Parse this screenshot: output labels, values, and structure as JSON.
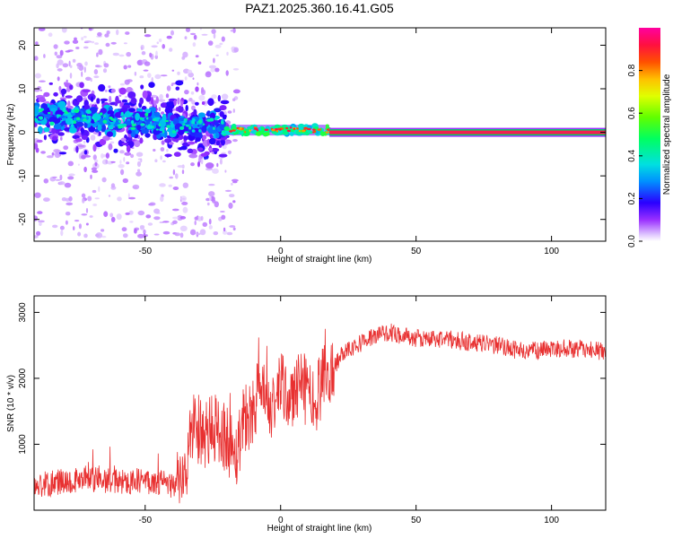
{
  "title": "PAZ1.2025.360.16.41.G05",
  "colors": {
    "snr_line": "#e83030",
    "track_core": "#f02050",
    "track_edge": "#00d060"
  },
  "chart_data": [
    {
      "type": "heatmap",
      "title": "PAZ1.2025.360.16.41.G05",
      "xlabel": "Height of straight line (km)",
      "ylabel": "Frequency (Hz)",
      "xlim": [
        -91,
        120
      ],
      "ylim": [
        -25,
        24
      ],
      "xticks": [
        -50,
        0,
        50,
        100
      ],
      "xtick_labels": [
        "-50",
        "0",
        "50",
        "100"
      ],
      "yticks": [
        20,
        10,
        0,
        -10,
        -20
      ],
      "ytick_labels": [
        "20",
        "10",
        "0",
        "-10",
        "-20"
      ],
      "description_points": {
        "noisy_region_x": [
          -91,
          -20
        ],
        "noisy_center_freq_start": 4,
        "noisy_center_freq_end": 1,
        "transition_region_x": [
          -20,
          18
        ],
        "transition_center_freq": 0.5,
        "clean_tone_region_x": [
          18,
          120
        ],
        "clean_tone_freq": 0
      },
      "colorbar": {
        "label": "Normalized spectral amplitude",
        "range": [
          0,
          1
        ],
        "ticks": [
          0.0,
          0.2,
          0.4,
          0.6,
          0.8
        ],
        "tick_labels": [
          "0.0",
          "0.2",
          "0.4",
          "0.6",
          "0.8"
        ]
      }
    },
    {
      "type": "line",
      "xlabel": "Height of straight line (km)",
      "ylabel": "SNR (10 * v/v)",
      "xlim": [
        -91,
        120
      ],
      "ylim": [
        0,
        3250
      ],
      "xticks": [
        -50,
        0,
        50,
        100
      ],
      "xtick_labels": [
        "-50",
        "0",
        "50",
        "100"
      ],
      "yticks": [
        1000,
        2000,
        3000
      ],
      "ytick_labels": [
        "1000",
        "2000",
        "3000"
      ],
      "series": [
        {
          "name": "SNR",
          "x": [
            -91,
            -80,
            -70,
            -60,
            -50,
            -40,
            -36,
            -32,
            -28,
            -24,
            -20,
            -16,
            -14,
            -12,
            -8,
            -4,
            0,
            4,
            8,
            12,
            16,
            20,
            24,
            28,
            32,
            40,
            50,
            60,
            70,
            80,
            90,
            100,
            110,
            120
          ],
          "values": [
            350,
            450,
            470,
            430,
            450,
            380,
            420,
            1350,
            1100,
            1250,
            1100,
            850,
            1450,
            1400,
            1800,
            1500,
            1850,
            1700,
            1900,
            1650,
            1950,
            2200,
            2450,
            2500,
            2600,
            2700,
            2600,
            2600,
            2550,
            2500,
            2400,
            2450,
            2450,
            2400
          ]
        }
      ]
    }
  ]
}
